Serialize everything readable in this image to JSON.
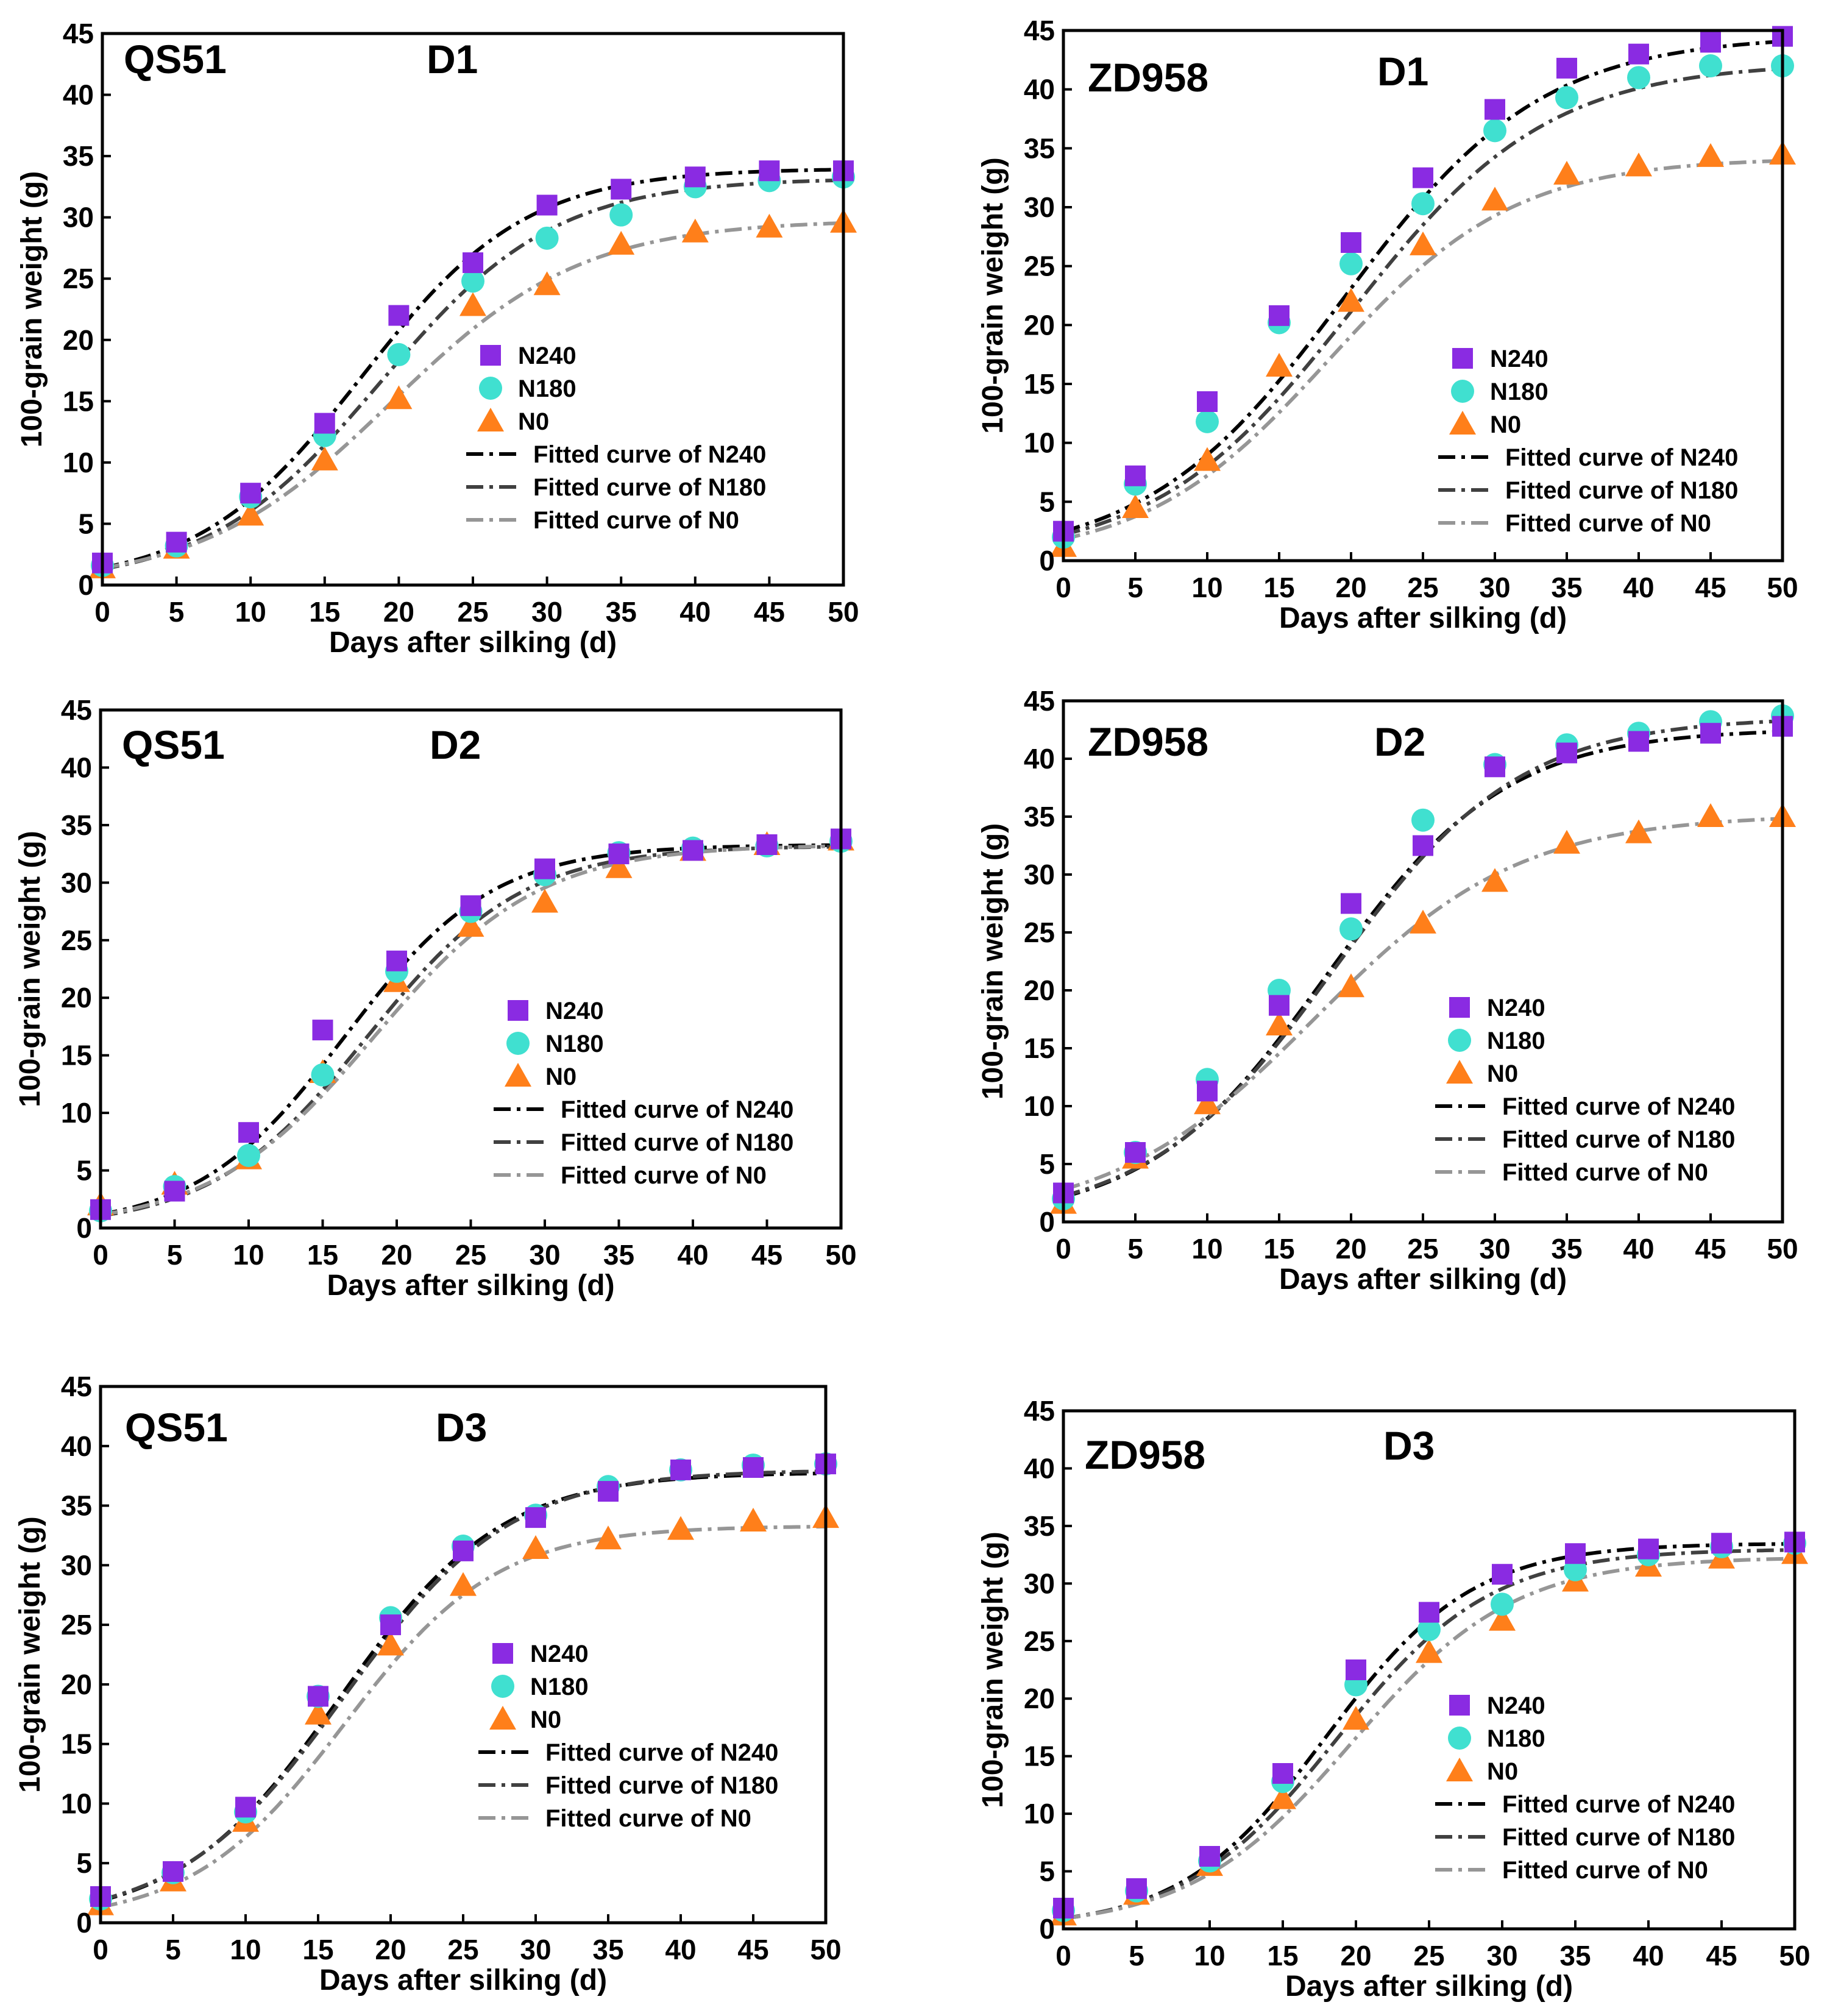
{
  "series_styles": {
    "N240": {
      "marker": "square",
      "color": "#8A2BE2",
      "line_color": "#000000",
      "line_dash": "28 10 6 10"
    },
    "N180": {
      "marker": "circle",
      "color": "#40E0D0",
      "line_color": "#404040",
      "line_dash": "28 10 6 10"
    },
    "N0": {
      "marker": "triangle",
      "color": "#FF7F1A",
      "line_color": "#969696",
      "line_dash": "28 10 6 10"
    }
  },
  "legend_labels": {
    "N240": "N240",
    "N180": "N180",
    "N0": "N0",
    "fit_N240": "Fitted curve of N240",
    "fit_N180": "Fitted curve of N180",
    "fit_N0": "Fitted curve of N0"
  },
  "chart_data": [
    {
      "type": "scatter",
      "panel": "QS51-D1",
      "variety": "QS51",
      "treatment": "D1",
      "xlabel": "Days after silking (d)",
      "ylabel": "100-grain weight (g)",
      "xlim": [
        0,
        50
      ],
      "ylim": [
        0,
        45
      ],
      "xticks": [
        0,
        5,
        10,
        15,
        20,
        25,
        30,
        35,
        40,
        45,
        50
      ],
      "yticks": [
        0,
        5,
        10,
        15,
        20,
        25,
        30,
        35,
        40,
        45
      ],
      "x": [
        0,
        5,
        10,
        15,
        20,
        25,
        30,
        35,
        40,
        45,
        50
      ],
      "series": [
        {
          "name": "N240",
          "values": [
            1.8,
            3.5,
            7.5,
            13.2,
            22.0,
            26.3,
            31.0,
            32.3,
            33.3,
            33.8,
            33.8
          ]
        },
        {
          "name": "N180",
          "values": [
            1.6,
            3.2,
            7.2,
            12.2,
            18.8,
            24.8,
            28.3,
            30.2,
            32.5,
            33.0,
            33.3
          ]
        },
        {
          "name": "N0",
          "values": [
            1.4,
            3.0,
            5.7,
            10.2,
            15.2,
            22.8,
            24.5,
            27.8,
            28.8,
            29.2,
            29.6
          ]
        }
      ],
      "fits": [
        {
          "name": "Fitted curve of N240",
          "A": 34.0,
          "k": 0.18,
          "x0": 17.5
        },
        {
          "name": "Fitted curve of N180",
          "A": 33.2,
          "k": 0.17,
          "x0": 18.8
        },
        {
          "name": "Fitted curve of N0",
          "A": 29.8,
          "k": 0.155,
          "x0": 19.5
        }
      ]
    },
    {
      "type": "scatter",
      "panel": "ZD958-D1",
      "variety": "ZD958",
      "treatment": "D1",
      "xlabel": "Days after silking (d)",
      "ylabel": "100-grain weight (g)",
      "xlim": [
        0,
        50
      ],
      "ylim": [
        0,
        45
      ],
      "xticks": [
        0,
        5,
        10,
        15,
        20,
        25,
        30,
        35,
        40,
        45,
        50
      ],
      "yticks": [
        0,
        5,
        10,
        15,
        20,
        25,
        30,
        35,
        40,
        45
      ],
      "x": [
        0,
        5,
        10,
        15,
        20,
        25,
        30,
        35,
        40,
        45,
        50
      ],
      "series": [
        {
          "name": "N240",
          "values": [
            2.5,
            7.2,
            13.5,
            20.8,
            27.0,
            32.5,
            38.3,
            41.8,
            43.0,
            44.0,
            44.5
          ]
        },
        {
          "name": "N180",
          "values": [
            2.0,
            6.5,
            11.8,
            20.2,
            25.2,
            30.3,
            36.5,
            39.3,
            41.0,
            42.0,
            42.0
          ]
        },
        {
          "name": "N0",
          "values": [
            1.2,
            4.5,
            8.5,
            16.5,
            22.0,
            26.8,
            30.6,
            32.8,
            33.5,
            34.3,
            34.5
          ]
        }
      ],
      "fits": [
        {
          "name": "Fitted curve of N240",
          "A": 44.6,
          "k": 0.145,
          "x0": 19.5
        },
        {
          "name": "Fitted curve of N180",
          "A": 42.3,
          "k": 0.145,
          "x0": 20.0
        },
        {
          "name": "Fitted curve of N0",
          "A": 34.2,
          "k": 0.155,
          "x0": 18.5
        }
      ]
    },
    {
      "type": "scatter",
      "panel": "QS51-D2",
      "variety": "QS51",
      "treatment": "D2",
      "xlabel": "Days after silking (d)",
      "ylabel": "100-grain weight (g)",
      "xlim": [
        0,
        50
      ],
      "ylim": [
        0,
        45
      ],
      "xticks": [
        0,
        5,
        10,
        15,
        20,
        25,
        30,
        35,
        40,
        45,
        50
      ],
      "yticks": [
        0,
        5,
        10,
        15,
        20,
        25,
        30,
        35,
        40,
        45
      ],
      "x": [
        0,
        5,
        10,
        15,
        20,
        25,
        30,
        35,
        40,
        45,
        50
      ],
      "series": [
        {
          "name": "N240",
          "values": [
            1.6,
            3.2,
            8.3,
            17.2,
            23.2,
            28.0,
            31.2,
            32.5,
            32.8,
            33.3,
            33.8
          ]
        },
        {
          "name": "N180",
          "values": [
            1.5,
            3.6,
            6.3,
            13.3,
            22.3,
            27.5,
            30.7,
            32.6,
            33.0,
            33.2,
            33.6
          ]
        },
        {
          "name": "N0",
          "values": [
            2.0,
            3.8,
            6.0,
            13.5,
            21.4,
            26.2,
            28.3,
            31.3,
            32.8,
            33.3,
            33.7
          ]
        }
      ],
      "fits": [
        {
          "name": "Fitted curve of N240",
          "A": 33.3,
          "k": 0.2,
          "x0": 16.5
        },
        {
          "name": "Fitted curve of N180",
          "A": 33.2,
          "k": 0.19,
          "x0": 18.0
        },
        {
          "name": "Fitted curve of N0",
          "A": 33.3,
          "k": 0.18,
          "x0": 18.5
        }
      ]
    },
    {
      "type": "scatter",
      "panel": "ZD958-D2",
      "variety": "ZD958",
      "treatment": "D2",
      "xlabel": "Days after silking (d)",
      "ylabel": "100-grain weight (g)",
      "xlim": [
        0,
        50
      ],
      "ylim": [
        0,
        45
      ],
      "xticks": [
        0,
        5,
        10,
        15,
        20,
        25,
        30,
        35,
        40,
        45,
        50
      ],
      "yticks": [
        0,
        5,
        10,
        15,
        20,
        25,
        30,
        35,
        40,
        45
      ],
      "x": [
        0,
        5,
        10,
        15,
        20,
        25,
        30,
        35,
        40,
        45,
        50
      ],
      "series": [
        {
          "name": "N240",
          "values": [
            2.5,
            6.0,
            11.3,
            18.7,
            27.5,
            32.5,
            39.3,
            40.5,
            41.5,
            42.2,
            42.8
          ]
        },
        {
          "name": "N180",
          "values": [
            2.0,
            6.0,
            12.3,
            20.0,
            25.3,
            34.7,
            39.5,
            41.2,
            42.2,
            43.2,
            43.7
          ]
        },
        {
          "name": "N0",
          "values": [
            1.6,
            5.5,
            10.2,
            17.0,
            20.3,
            25.8,
            29.4,
            32.7,
            33.6,
            35.0,
            35.0
          ]
        }
      ],
      "fits": [
        {
          "name": "Fitted curve of N240",
          "A": 42.6,
          "k": 0.16,
          "x0": 18.3
        },
        {
          "name": "Fitted curve of N180",
          "A": 43.6,
          "k": 0.155,
          "x0": 18.8
        },
        {
          "name": "Fitted curve of N0",
          "A": 35.2,
          "k": 0.14,
          "x0": 17.5
        }
      ]
    },
    {
      "type": "scatter",
      "panel": "QS51-D3",
      "variety": "QS51",
      "treatment": "D3",
      "xlabel": "Days after silking (d)",
      "ylabel": "100-grain weight (g)",
      "xlim": [
        0,
        50
      ],
      "ylim": [
        0,
        45
      ],
      "xticks": [
        0,
        5,
        10,
        15,
        20,
        25,
        30,
        35,
        40,
        45,
        50
      ],
      "yticks": [
        0,
        5,
        10,
        15,
        20,
        25,
        30,
        35,
        40,
        45
      ],
      "x": [
        0,
        5,
        10,
        15,
        20,
        25,
        30,
        35,
        40,
        45,
        50
      ],
      "series": [
        {
          "name": "N240",
          "values": [
            2.2,
            4.3,
            9.7,
            19.0,
            25.0,
            31.2,
            34.0,
            36.2,
            38.0,
            38.2,
            38.5
          ]
        },
        {
          "name": "N180",
          "values": [
            2.0,
            4.2,
            9.3,
            19.0,
            25.6,
            31.6,
            34.2,
            36.6,
            38.0,
            38.4,
            38.5
          ]
        },
        {
          "name": "N0",
          "values": [
            1.5,
            3.5,
            8.5,
            17.5,
            23.3,
            28.3,
            31.4,
            32.2,
            33.0,
            33.7,
            34.0
          ]
        }
      ],
      "fits": [
        {
          "name": "Fitted curve of N240",
          "A": 37.8,
          "k": 0.18,
          "x0": 16.5
        },
        {
          "name": "Fitted curve of N180",
          "A": 38.0,
          "k": 0.175,
          "x0": 16.8
        },
        {
          "name": "Fitted curve of N0",
          "A": 33.3,
          "k": 0.19,
          "x0": 16.8
        }
      ]
    },
    {
      "type": "scatter",
      "panel": "ZD958-D3",
      "variety": "ZD958",
      "treatment": "D3",
      "xlabel": "Days after silking (d)",
      "ylabel": "100-grain weight (g)",
      "xlim": [
        0,
        50
      ],
      "ylim": [
        0,
        45
      ],
      "xticks": [
        0,
        5,
        10,
        15,
        20,
        25,
        30,
        35,
        40,
        45,
        50
      ],
      "yticks": [
        0,
        5,
        10,
        15,
        20,
        25,
        30,
        35,
        40,
        45
      ],
      "x": [
        0,
        5,
        10,
        15,
        20,
        25,
        30,
        35,
        40,
        45,
        50
      ],
      "series": [
        {
          "name": "N240",
          "values": [
            1.8,
            3.5,
            6.3,
            13.5,
            22.5,
            27.5,
            30.8,
            32.6,
            33.0,
            33.5,
            33.6
          ]
        },
        {
          "name": "N180",
          "values": [
            1.6,
            3.3,
            5.9,
            12.8,
            21.2,
            26.0,
            28.2,
            31.2,
            32.5,
            33.2,
            33.5
          ]
        },
        {
          "name": "N0",
          "values": [
            1.2,
            3.0,
            5.5,
            11.3,
            18.2,
            24.0,
            26.8,
            30.2,
            31.5,
            32.2,
            32.6
          ]
        }
      ],
      "fits": [
        {
          "name": "Fitted curve of N240",
          "A": 33.5,
          "k": 0.2,
          "x0": 18.0
        },
        {
          "name": "Fitted curve of N180",
          "A": 33.0,
          "k": 0.19,
          "x0": 18.7
        },
        {
          "name": "Fitted curve of N0",
          "A": 32.3,
          "k": 0.18,
          "x0": 19.7
        }
      ]
    }
  ]
}
